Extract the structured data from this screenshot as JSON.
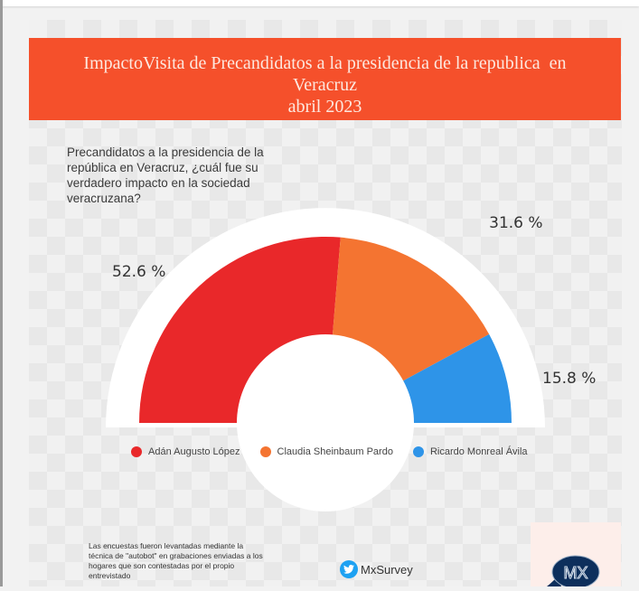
{
  "header": {
    "title_line1": "ImpactoVisita de Precandidatos a la presidencia de la republica  en",
    "title_line2": "Veracruz",
    "title_line3": "abril 2023",
    "background_color": "#f5502b"
  },
  "question": "Precandidatos a la presidencia de la república  en Veracruz, ¿cuál fue su verdadero impacto en la sociedad veracruzana?",
  "chart_data": {
    "type": "pie",
    "subtype": "half-donut",
    "categories": [
      "Adán Augusto López",
      "Claudia Sheinbaum Pardo",
      "Ricardo Monreal Ávila"
    ],
    "values": [
      52.6,
      31.6,
      15.8
    ],
    "data_labels": [
      "52.6 %",
      "31.6 %",
      "15.8 %"
    ],
    "colors": [
      "#e9282a",
      "#f47431",
      "#2e94e8"
    ],
    "legend_position": "bottom",
    "title": ""
  },
  "footer": {
    "note": "Las encuestas fueron levantadas mediante la técnica de \"autobot\" en grabaciones enviadas a los hogares que son contestadas por el propio entrevistado",
    "twitter_handle": "MxSurvey",
    "logo_text": "MX"
  }
}
